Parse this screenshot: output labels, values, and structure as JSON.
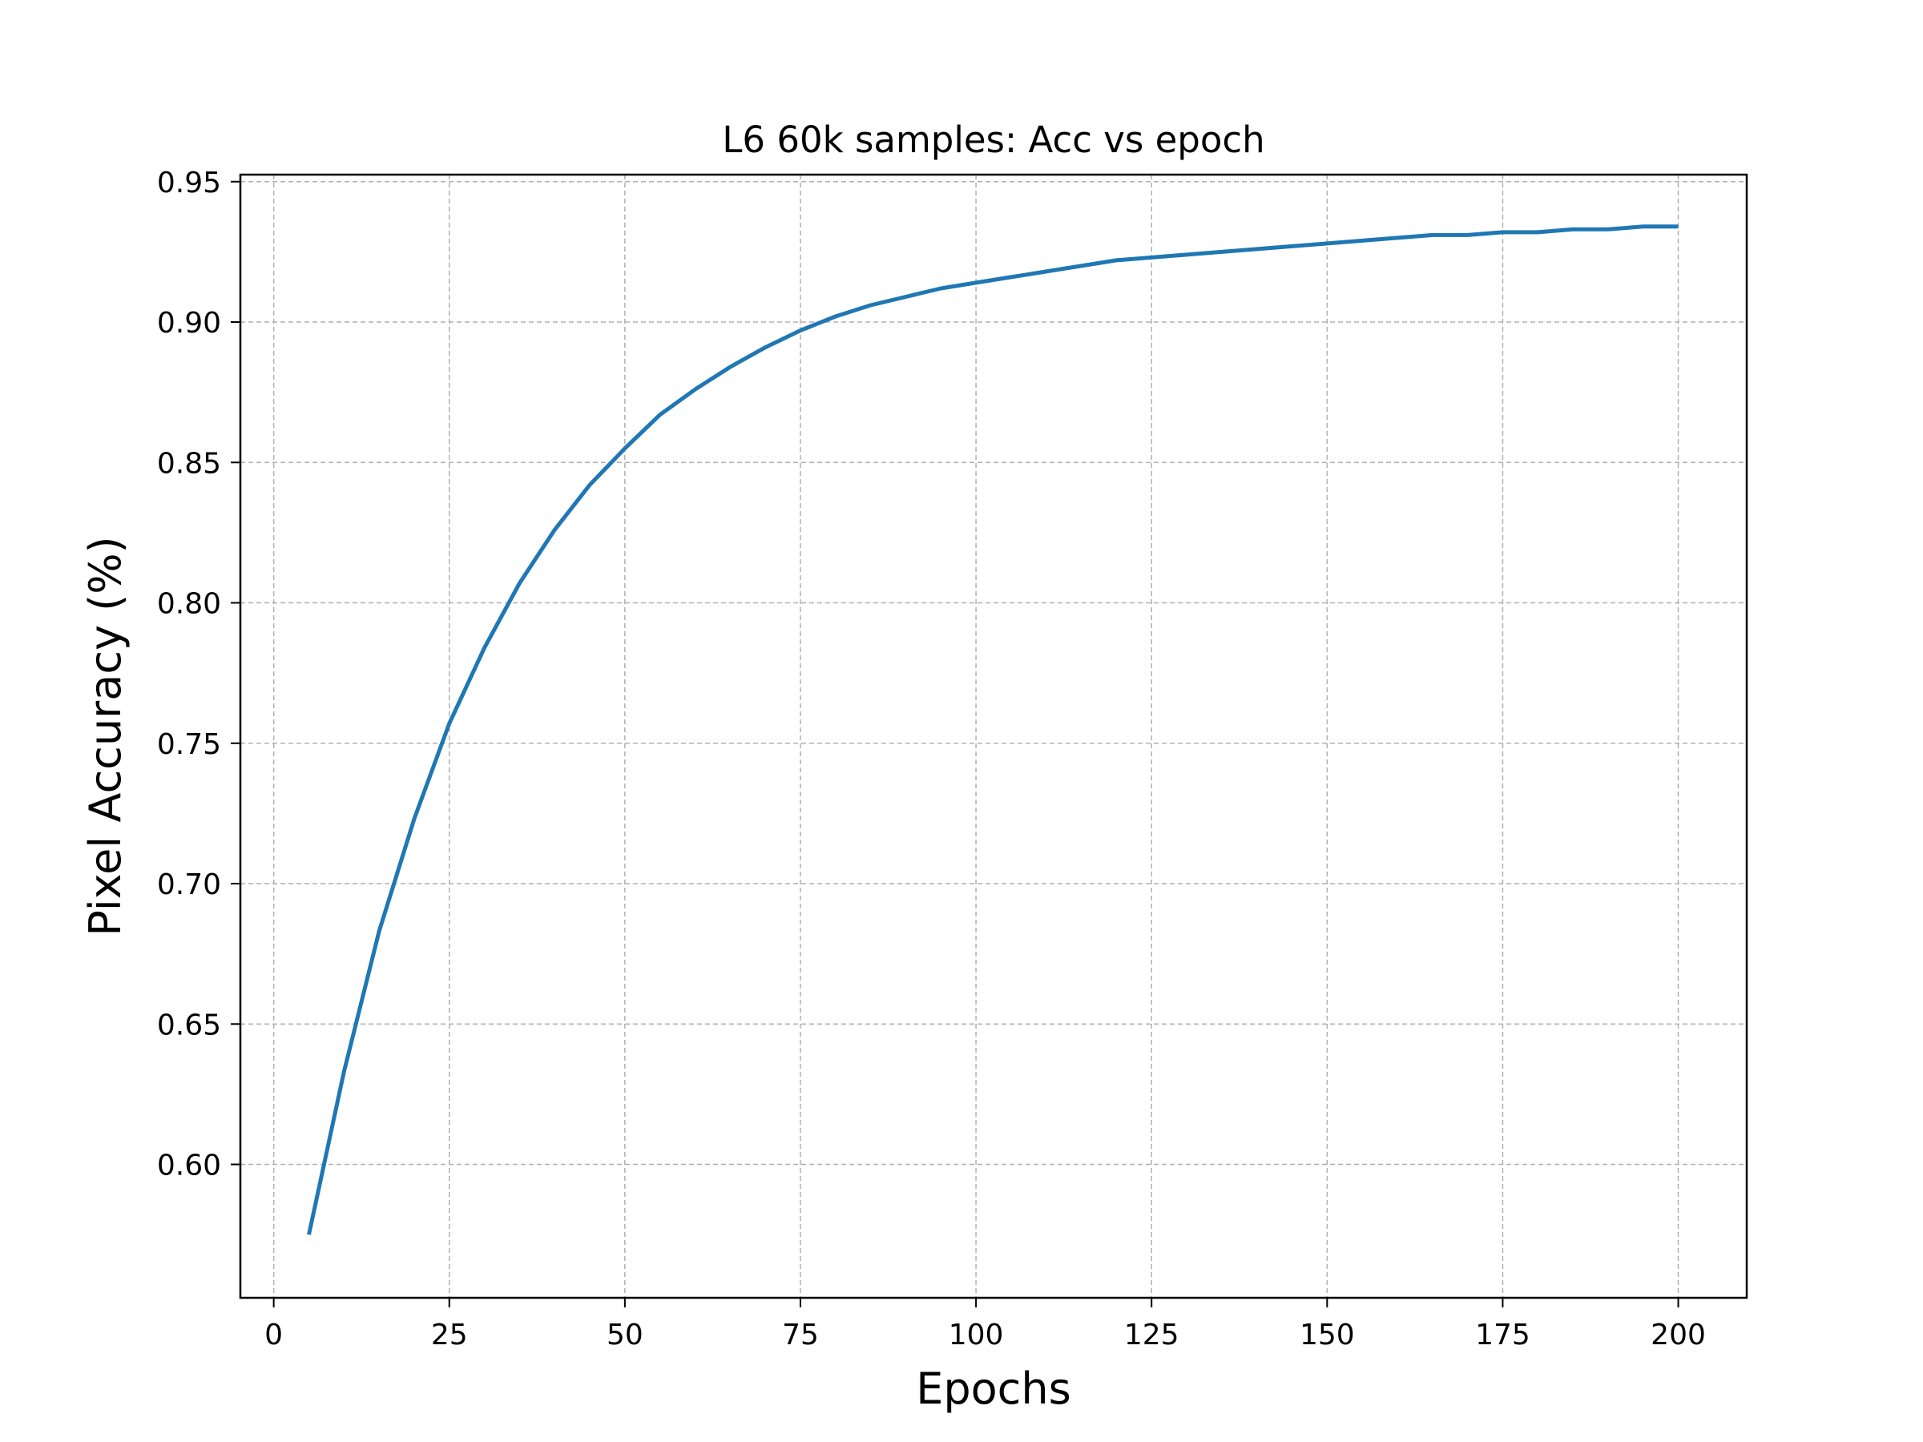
{
  "chart_data": {
    "type": "line",
    "title": "L6 60k samples: Acc vs epoch",
    "xlabel": "Epochs",
    "ylabel": "Pixel Accuracy (%)",
    "xlim": [
      -4.75,
      209.75
    ],
    "ylim": [
      0.5525,
      0.9525
    ],
    "xticks": [
      0,
      25,
      50,
      75,
      100,
      125,
      150,
      175,
      200
    ],
    "xtick_labels": [
      "0",
      "25",
      "50",
      "75",
      "100",
      "125",
      "150",
      "175",
      "200"
    ],
    "yticks": [
      0.6,
      0.65,
      0.7,
      0.75,
      0.8,
      0.85,
      0.9,
      0.95
    ],
    "ytick_labels": [
      "0.60",
      "0.65",
      "0.70",
      "0.75",
      "0.80",
      "0.85",
      "0.90",
      "0.95"
    ],
    "grid": true,
    "legend": "none",
    "series": [
      {
        "color": "#1f77b4",
        "x": [
          5,
          10,
          15,
          20,
          25,
          30,
          35,
          40,
          45,
          50,
          55,
          60,
          65,
          70,
          75,
          80,
          85,
          90,
          95,
          100,
          105,
          110,
          115,
          120,
          125,
          130,
          135,
          140,
          145,
          150,
          155,
          160,
          165,
          170,
          175,
          180,
          185,
          190,
          195,
          200
        ],
        "values": [
          0.575,
          0.633,
          0.683,
          0.723,
          0.757,
          0.784,
          0.807,
          0.826,
          0.842,
          0.855,
          0.867,
          0.876,
          0.884,
          0.891,
          0.897,
          0.902,
          0.906,
          0.909,
          0.912,
          0.914,
          0.916,
          0.918,
          0.92,
          0.922,
          0.923,
          0.924,
          0.925,
          0.926,
          0.927,
          0.928,
          0.929,
          0.93,
          0.931,
          0.931,
          0.932,
          0.932,
          0.933,
          0.933,
          0.934,
          0.934
        ]
      }
    ]
  }
}
